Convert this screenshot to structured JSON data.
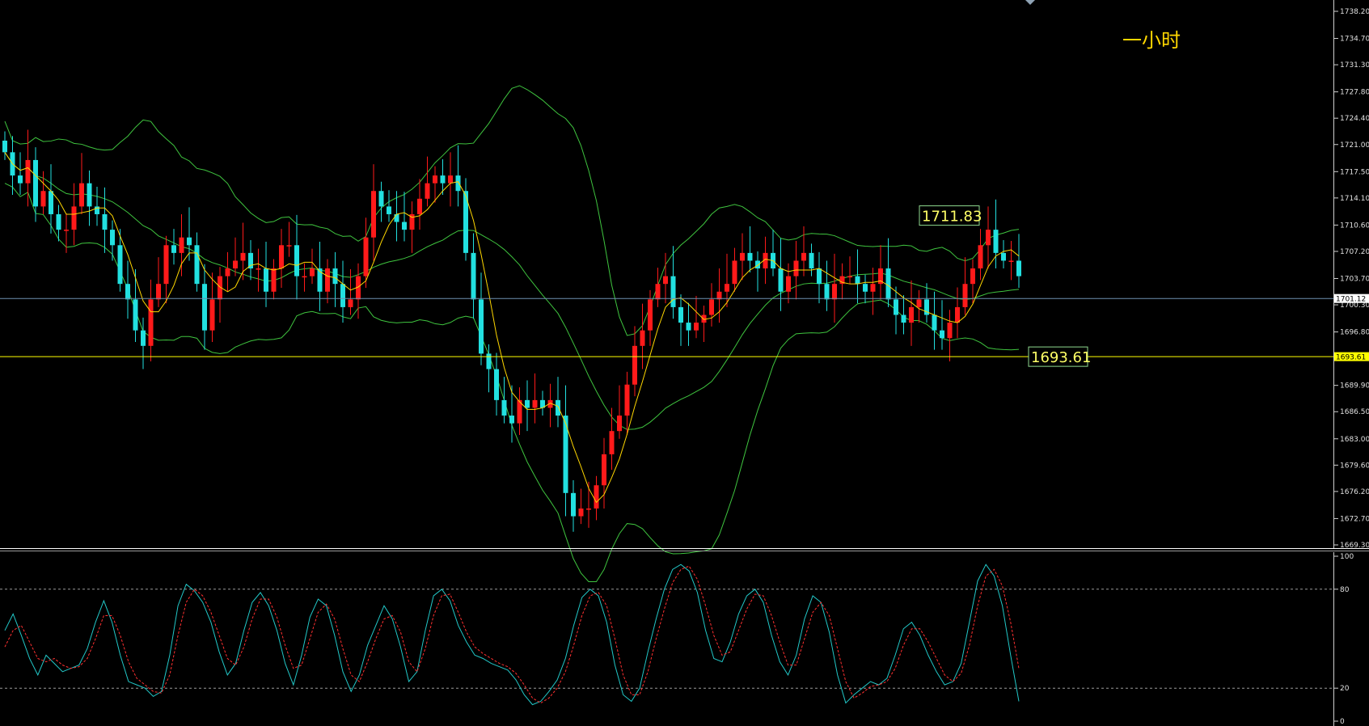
{
  "timeframe_label": "一小时",
  "colors": {
    "background": "#000000",
    "bull": "#ff1a1a",
    "bear": "#22e0e0",
    "band": "#3fc43f",
    "ma": "#ffd700",
    "current_line": "#6d8fb0",
    "support_line": "#ffff00",
    "stoch_k": "#22c8c8",
    "stoch_d": "#ff3030",
    "axis_text": "#e0e0e0"
  },
  "chart_data": [
    {
      "type": "candlestick",
      "title": "",
      "y_ticks": [
        "1738.20",
        "1734.70",
        "1731.30",
        "1727.80",
        "1724.40",
        "1721.00",
        "1717.50",
        "1714.10",
        "1710.60",
        "1707.20",
        "1703.70",
        "1700.30",
        "1696.80",
        "1693.40",
        "1689.90",
        "1686.50",
        "1683.00",
        "1679.60",
        "1676.20",
        "1672.70",
        "1669.30"
      ],
      "ylim": [
        1669.3,
        1738.2
      ],
      "current_price": "1701.12",
      "support_level": "1693.61",
      "annotations": [
        {
          "text": "1711.83",
          "value": 1711.83
        },
        {
          "text": "1693.61",
          "value": 1693.61
        }
      ],
      "closes": [
        1720,
        1717,
        1716,
        1719,
        1713,
        1715,
        1712,
        1710,
        1710,
        1713,
        1716,
        1713,
        1712,
        1710,
        1708,
        1703,
        1701,
        1697,
        1695,
        1701,
        1703,
        1708,
        1707,
        1709,
        1708,
        1703,
        1697,
        1701,
        1704,
        1705,
        1706,
        1707,
        1705,
        1705,
        1702,
        1705,
        1708,
        1708,
        1704,
        1704,
        1705,
        1702,
        1705,
        1703,
        1700,
        1701,
        1704,
        1709,
        1715,
        1713,
        1712,
        1711,
        1710,
        1712,
        1714,
        1716,
        1717,
        1716,
        1717,
        1715,
        1707,
        1701,
        1694,
        1692,
        1688,
        1686,
        1685,
        1688,
        1687,
        1688,
        1687,
        1688,
        1686,
        1676,
        1673,
        1674,
        1674,
        1677,
        1681,
        1684,
        1686,
        1690,
        1695,
        1697,
        1701,
        1703,
        1704,
        1700,
        1698,
        1697,
        1698,
        1699,
        1701,
        1702,
        1703,
        1706,
        1707,
        1706,
        1705,
        1707,
        1705,
        1702,
        1704,
        1706,
        1707,
        1705,
        1703,
        1701,
        1703,
        1704,
        1704,
        1703,
        1702,
        1703,
        1705,
        1701,
        1699,
        1698,
        1700,
        1701,
        1699,
        1697,
        1696,
        1698,
        1700,
        1703,
        1705,
        1708,
        1710,
        1707,
        1706,
        1706,
        1704
      ],
      "bollinger": "upper/middle/lower envelopes (green) around price",
      "ma_line": "fast moving average (yellow)"
    },
    {
      "type": "line",
      "title": "",
      "y_ticks": [
        "100",
        "80",
        "20",
        "0"
      ],
      "ylim": [
        0,
        100
      ],
      "levels": [
        80,
        20
      ],
      "series": [
        {
          "values": [
            55,
            65,
            52,
            38,
            28,
            40,
            35,
            30,
            32,
            34,
            44,
            60,
            73,
            60,
            40,
            24,
            22,
            20,
            15,
            18,
            40,
            70,
            83,
            79,
            72,
            60,
            42,
            28,
            35,
            55,
            72,
            78,
            70,
            55,
            35,
            22,
            40,
            63,
            74,
            70,
            52,
            30,
            18,
            28,
            46,
            58,
            70,
            62,
            45,
            24,
            30,
            55,
            76,
            80,
            73,
            58,
            48,
            40,
            38,
            35,
            33,
            31,
            25,
            16,
            10,
            12,
            18,
            25,
            38,
            58,
            75,
            80,
            76,
            60,
            34,
            16,
            12,
            20,
            42,
            62,
            80,
            92,
            95,
            91,
            78,
            55,
            38,
            36,
            48,
            65,
            76,
            80,
            72,
            52,
            36,
            28,
            40,
            62,
            76,
            72,
            54,
            28,
            11,
            16,
            20,
            24,
            22,
            26,
            40,
            56,
            60,
            52,
            40,
            30,
            22,
            24,
            35,
            60,
            85,
            95,
            88,
            70,
            40,
            12
          ]
        },
        {
          "values": [
            45,
            55,
            58,
            48,
            38,
            36,
            38,
            34,
            32,
            33,
            38,
            50,
            64,
            64,
            52,
            36,
            26,
            22,
            18,
            17,
            28,
            52,
            72,
            80,
            76,
            66,
            52,
            38,
            34,
            45,
            62,
            74,
            74,
            63,
            46,
            32,
            34,
            50,
            66,
            71,
            62,
            44,
            28,
            24,
            36,
            50,
            62,
            64,
            54,
            36,
            30,
            44,
            64,
            76,
            77,
            66,
            54,
            45,
            41,
            38,
            35,
            33,
            29,
            22,
            14,
            11,
            14,
            20,
            30,
            46,
            64,
            76,
            78,
            70,
            50,
            28,
            16,
            16,
            30,
            50,
            68,
            84,
            92,
            94,
            86,
            70,
            52,
            40,
            42,
            55,
            68,
            77,
            76,
            64,
            48,
            34,
            34,
            50,
            66,
            72,
            64,
            44,
            24,
            14,
            17,
            21,
            22,
            24,
            32,
            46,
            56,
            56,
            48,
            38,
            28,
            24,
            29,
            46,
            70,
            88,
            92,
            82,
            60,
            32
          ]
        }
      ]
    }
  ]
}
